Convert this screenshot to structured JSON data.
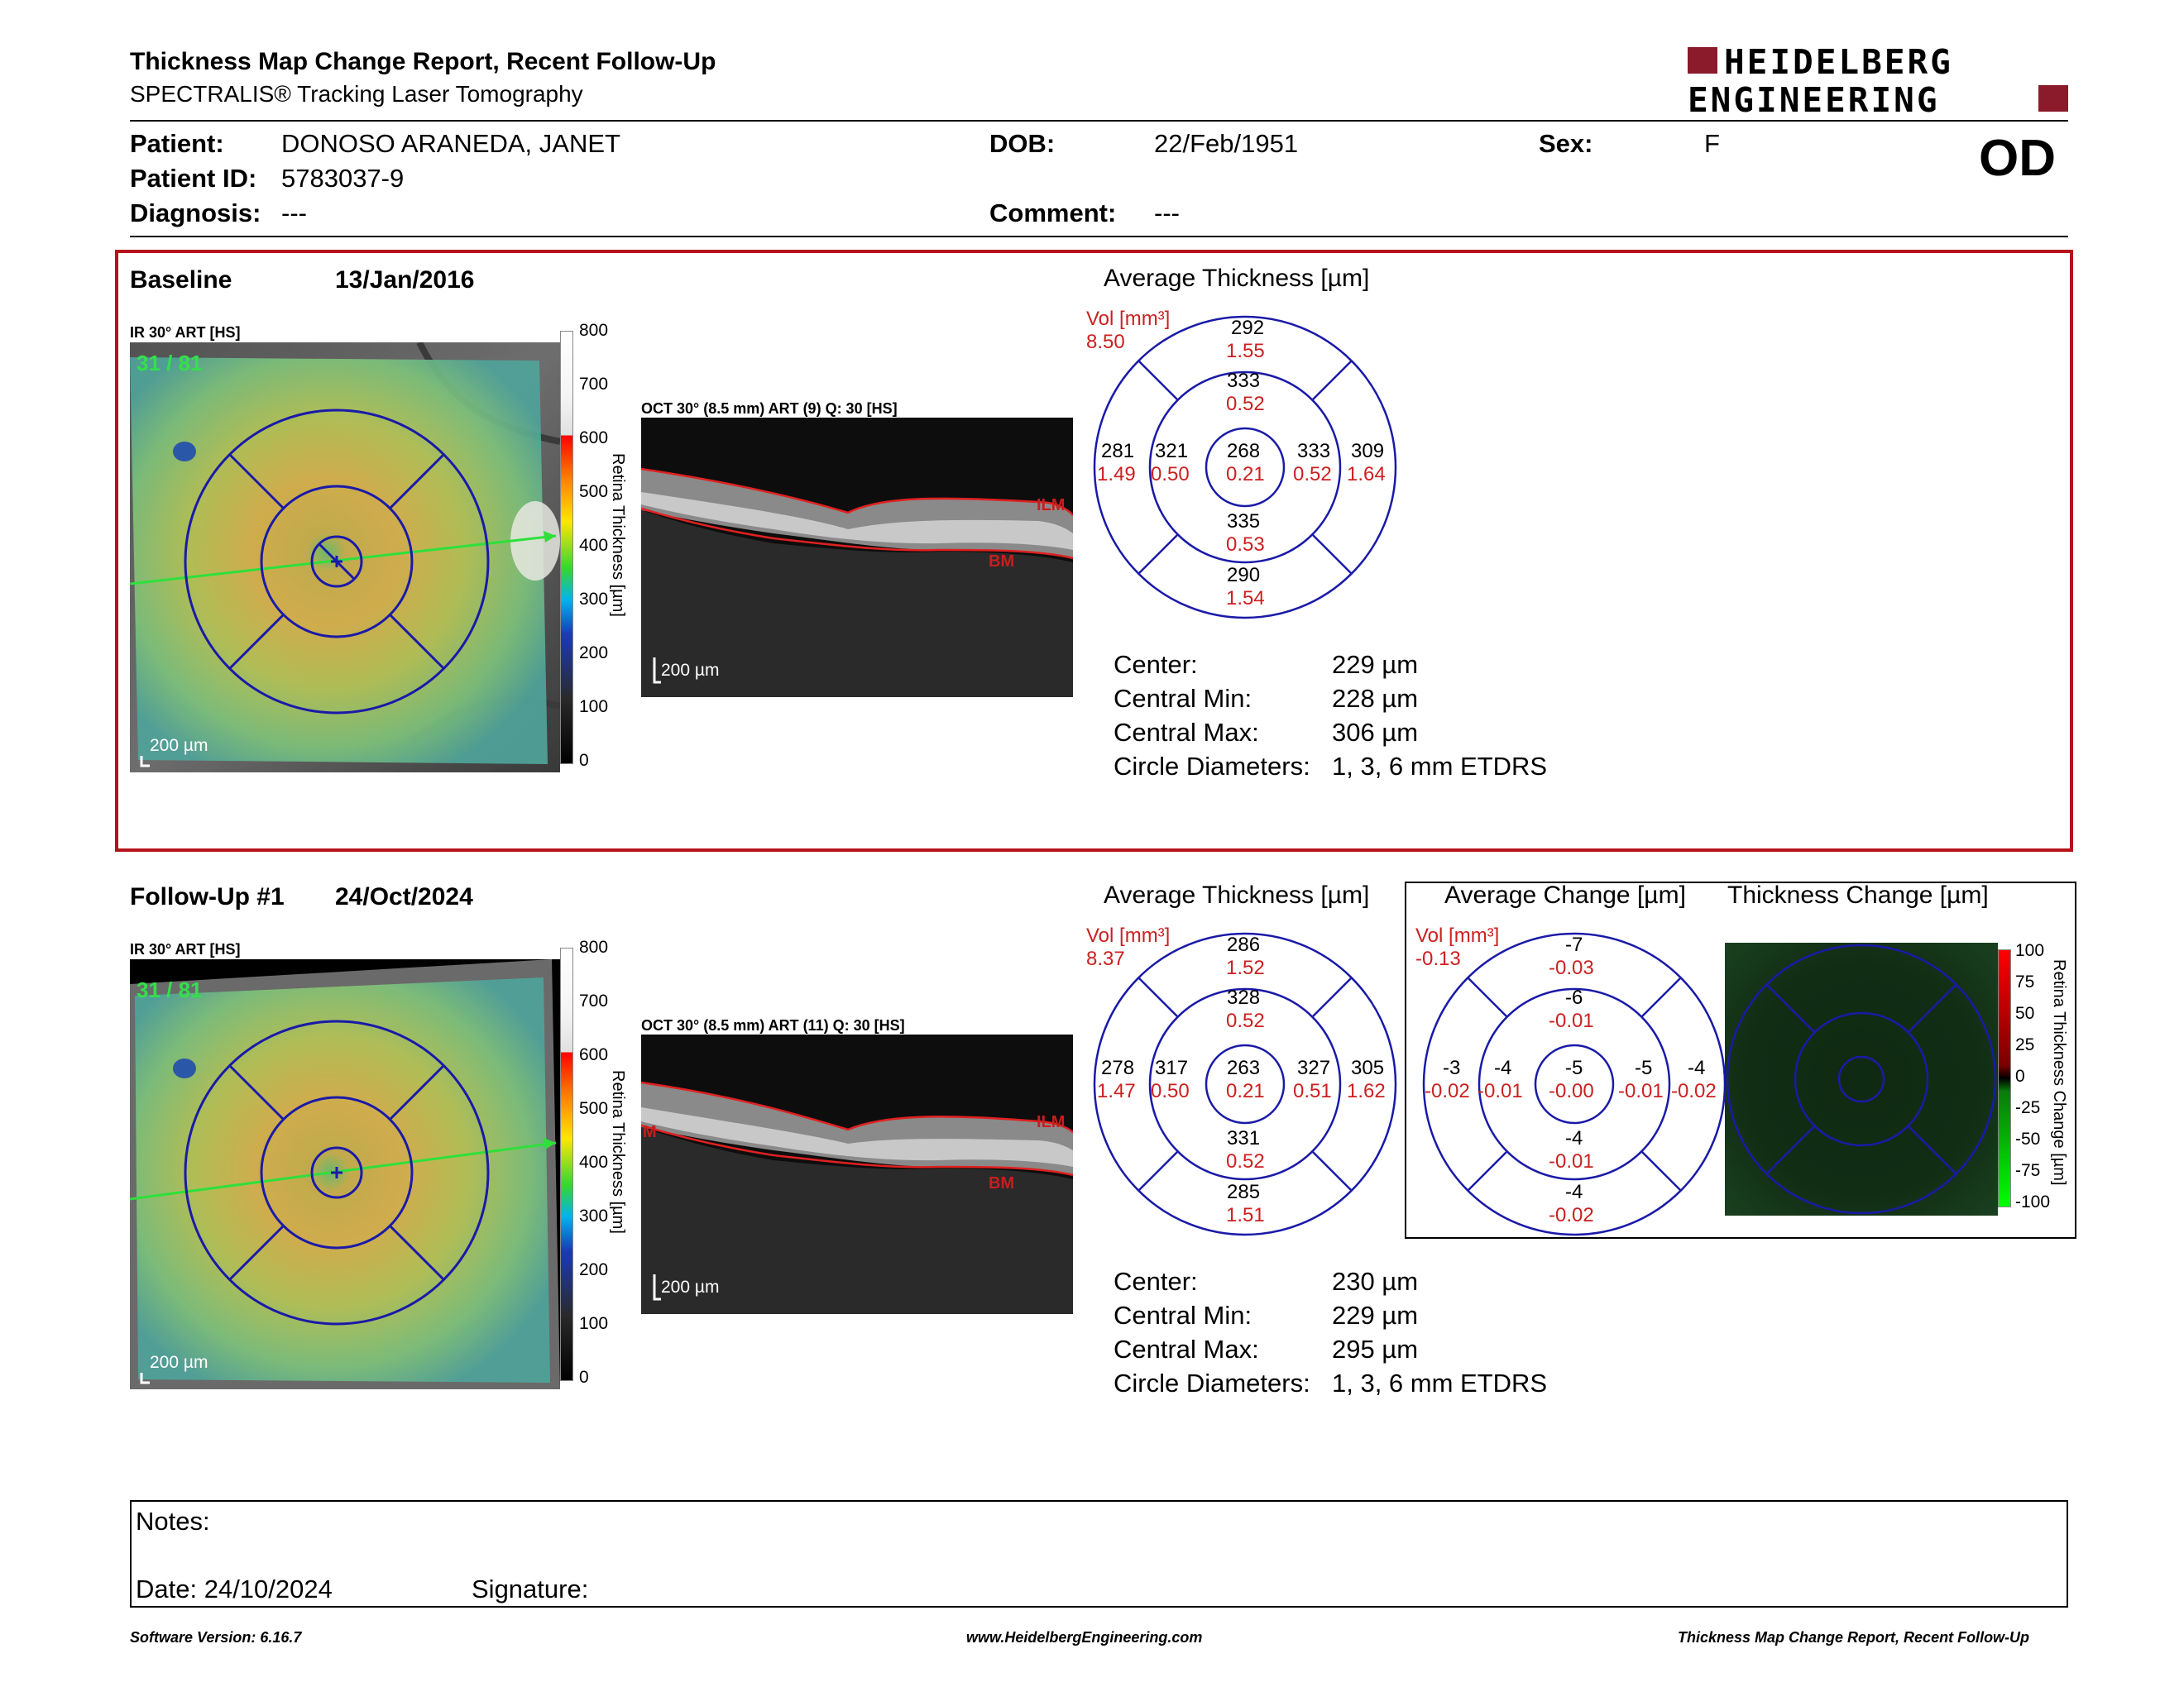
{
  "header": {
    "title": "Thickness Map Change Report, Recent Follow-Up",
    "subtitle": "SPECTRALIS® Tracking Laser Tomography",
    "logo_line1": "HEIDELBERG",
    "logo_line2": "ENGINEERING",
    "eye": "OD"
  },
  "patient": {
    "name_label": "Patient:",
    "name": "DONOSO ARANEDA, JANET",
    "dob_label": "DOB:",
    "dob": "22/Feb/1951",
    "sex_label": "Sex:",
    "sex": "F",
    "id_label": "Patient ID:",
    "id": "5783037-9",
    "diagnosis_label": "Diagnosis:",
    "diagnosis": "---",
    "comment_label": "Comment:",
    "comment": "---"
  },
  "colors": {
    "accent_red": "#b5121b",
    "chart_red": "#cc2020",
    "grid_blue": "#1a1aa8"
  },
  "baseline": {
    "label": "Baseline",
    "date": "13/Jan/2016",
    "ir_label": "IR 30° ART [HS]",
    "ir_counter": "31 / 81",
    "scale": "200 µm",
    "oct_label": "OCT 30° (8.5 mm) ART (9) Q: 30 [HS]",
    "oct_scale": "200 µm",
    "ilm": "ILM",
    "bm": "BM",
    "cmap_title": "Retina Thickness [µm]",
    "cmap_ticks": [
      "800",
      "700",
      "600",
      "500",
      "400",
      "300",
      "200",
      "100",
      "0"
    ],
    "avg_title": "Average Thickness [µm]",
    "vol_label": "Vol [mm³]",
    "vol_total": "8.50",
    "sectors": {
      "outer_sup": [
        "292",
        "1.55"
      ],
      "inner_sup": [
        "333",
        "0.52"
      ],
      "outer_temp": [
        "281",
        "1.49"
      ],
      "inner_temp": [
        "321",
        "0.50"
      ],
      "center": [
        "268",
        "0.21"
      ],
      "inner_nas": [
        "333",
        "0.52"
      ],
      "outer_nas": [
        "309",
        "1.64"
      ],
      "inner_inf": [
        "335",
        "0.53"
      ],
      "outer_inf": [
        "290",
        "1.54"
      ]
    },
    "stats": [
      {
        "label": "Center:",
        "value": "229 µm"
      },
      {
        "label": "Central Min:",
        "value": "228 µm"
      },
      {
        "label": "Central Max:",
        "value": "306 µm"
      },
      {
        "label": "Circle Diameters:",
        "value": "1, 3, 6 mm ETDRS"
      }
    ]
  },
  "followup": {
    "label": "Follow-Up #1",
    "date": "24/Oct/2024",
    "ir_label": "IR 30° ART [HS]",
    "ir_counter": "31 / 81",
    "scale": "200 µm",
    "oct_label": "OCT 30° (8.5 mm) ART (11) Q: 30 [HS]",
    "oct_scale": "200 µm",
    "ilm": "ILM",
    "bm": "BM",
    "left_mark": "M",
    "cmap_title": "Retina Thickness [µm]",
    "cmap_ticks": [
      "800",
      "700",
      "600",
      "500",
      "400",
      "300",
      "200",
      "100",
      "0"
    ],
    "avg_title": "Average Thickness [µm]",
    "vol_label": "Vol [mm³]",
    "vol_total": "8.37",
    "sectors": {
      "outer_sup": [
        "286",
        "1.52"
      ],
      "inner_sup": [
        "328",
        "0.52"
      ],
      "outer_temp": [
        "278",
        "1.47"
      ],
      "inner_temp": [
        "317",
        "0.50"
      ],
      "center": [
        "263",
        "0.21"
      ],
      "inner_nas": [
        "327",
        "0.51"
      ],
      "outer_nas": [
        "305",
        "1.62"
      ],
      "inner_inf": [
        "331",
        "0.52"
      ],
      "outer_inf": [
        "285",
        "1.51"
      ]
    },
    "stats": [
      {
        "label": "Center:",
        "value": "230 µm"
      },
      {
        "label": "Central Min:",
        "value": "229 µm"
      },
      {
        "label": "Central Max:",
        "value": "295 µm"
      },
      {
        "label": "Circle Diameters:",
        "value": "1, 3, 6 mm ETDRS"
      }
    ]
  },
  "change": {
    "avg_title": "Average Change [µm]",
    "map_title": "Thickness Change [µm]",
    "vol_label": "Vol [mm³]",
    "vol_total": "-0.13",
    "sectors": {
      "outer_sup": [
        "-7",
        "-0.03"
      ],
      "inner_sup": [
        "-6",
        "-0.01"
      ],
      "outer_temp": [
        "-3",
        "-0.02"
      ],
      "inner_temp": [
        "-4",
        "-0.01"
      ],
      "center": [
        "-5",
        "-0.00"
      ],
      "inner_nas": [
        "-5",
        "-0.01"
      ],
      "outer_nas": [
        "-4",
        "-0.02"
      ],
      "inner_inf": [
        "-4",
        "-0.01"
      ],
      "outer_inf": [
        "-4",
        "-0.02"
      ]
    },
    "cmap_title": "Retina Thickness Change [µm]",
    "cmap_ticks": [
      "100",
      "75",
      "50",
      "25",
      "0",
      "-25",
      "-50",
      "-75",
      "-100"
    ]
  },
  "notes": {
    "notes_label": "Notes:",
    "date_label": "Date: 24/10/2024",
    "signature_label": "Signature:"
  },
  "footer": {
    "version": "Software Version: 6.16.7",
    "url": "www.HeidelbergEngineering.com",
    "report": "Thickness Map Change Report, Recent Follow-Up"
  }
}
